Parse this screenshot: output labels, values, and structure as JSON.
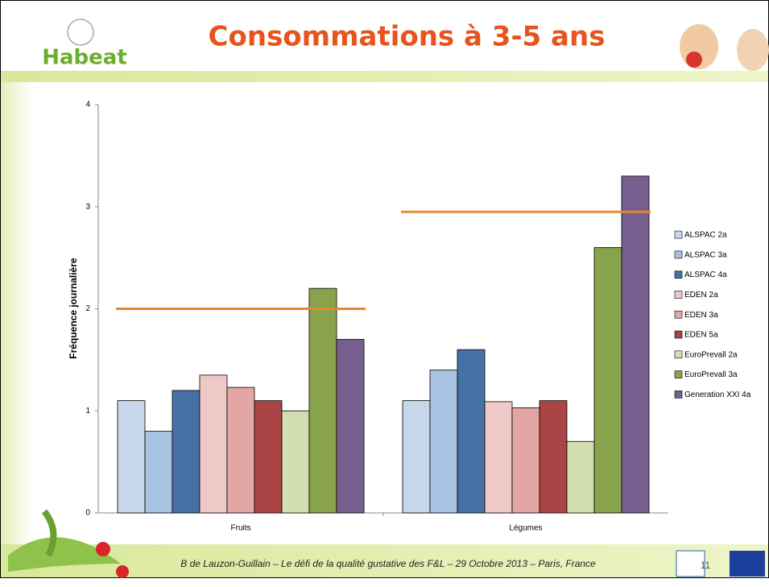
{
  "header": {
    "logo": "Habeat",
    "title": "Consommations à 3-5 ans"
  },
  "footer": {
    "text": "B de Lauzon-Guillain – Le défi de la qualité gustative des F&L – 29 Octobre 2013 – Paris, France",
    "page_number": "11"
  },
  "chart_data": {
    "type": "bar",
    "ylabel": "Fréquence journalière",
    "categories": [
      "Fruits",
      "Légumes"
    ],
    "ylim": [
      0,
      4
    ],
    "yticks": [
      0,
      1,
      2,
      3,
      4
    ],
    "series": [
      {
        "name": "ALSPAC 2a",
        "color": "#c6d7ec",
        "values": [
          1.1,
          1.1
        ]
      },
      {
        "name": "ALSPAC 3a",
        "color": "#a8c2e1",
        "values": [
          0.8,
          1.4
        ]
      },
      {
        "name": "ALSPAC 4a",
        "color": "#4571a6",
        "values": [
          1.2,
          1.6
        ]
      },
      {
        "name": "EDEN 2a",
        "color": "#efc9c7",
        "values": [
          1.35,
          1.09
        ]
      },
      {
        "name": "EDEN 3a",
        "color": "#e3a6a4",
        "values": [
          1.23,
          1.03
        ]
      },
      {
        "name": "EDEN 5a",
        "color": "#a94645",
        "values": [
          1.1,
          1.1
        ]
      },
      {
        "name": "EuroPrevall 2a",
        "color": "#d3dfb1",
        "values": [
          1.0,
          0.7
        ]
      },
      {
        "name": "EuroPrevall 3a",
        "color": "#88a34c",
        "values": [
          2.2,
          2.6
        ]
      },
      {
        "name": "Generation XXI 4a",
        "color": "#765f8f",
        "values": [
          1.7,
          3.3
        ]
      }
    ],
    "reference_values": [
      2.0,
      2.95
    ],
    "reference_color": "#e8862f"
  }
}
